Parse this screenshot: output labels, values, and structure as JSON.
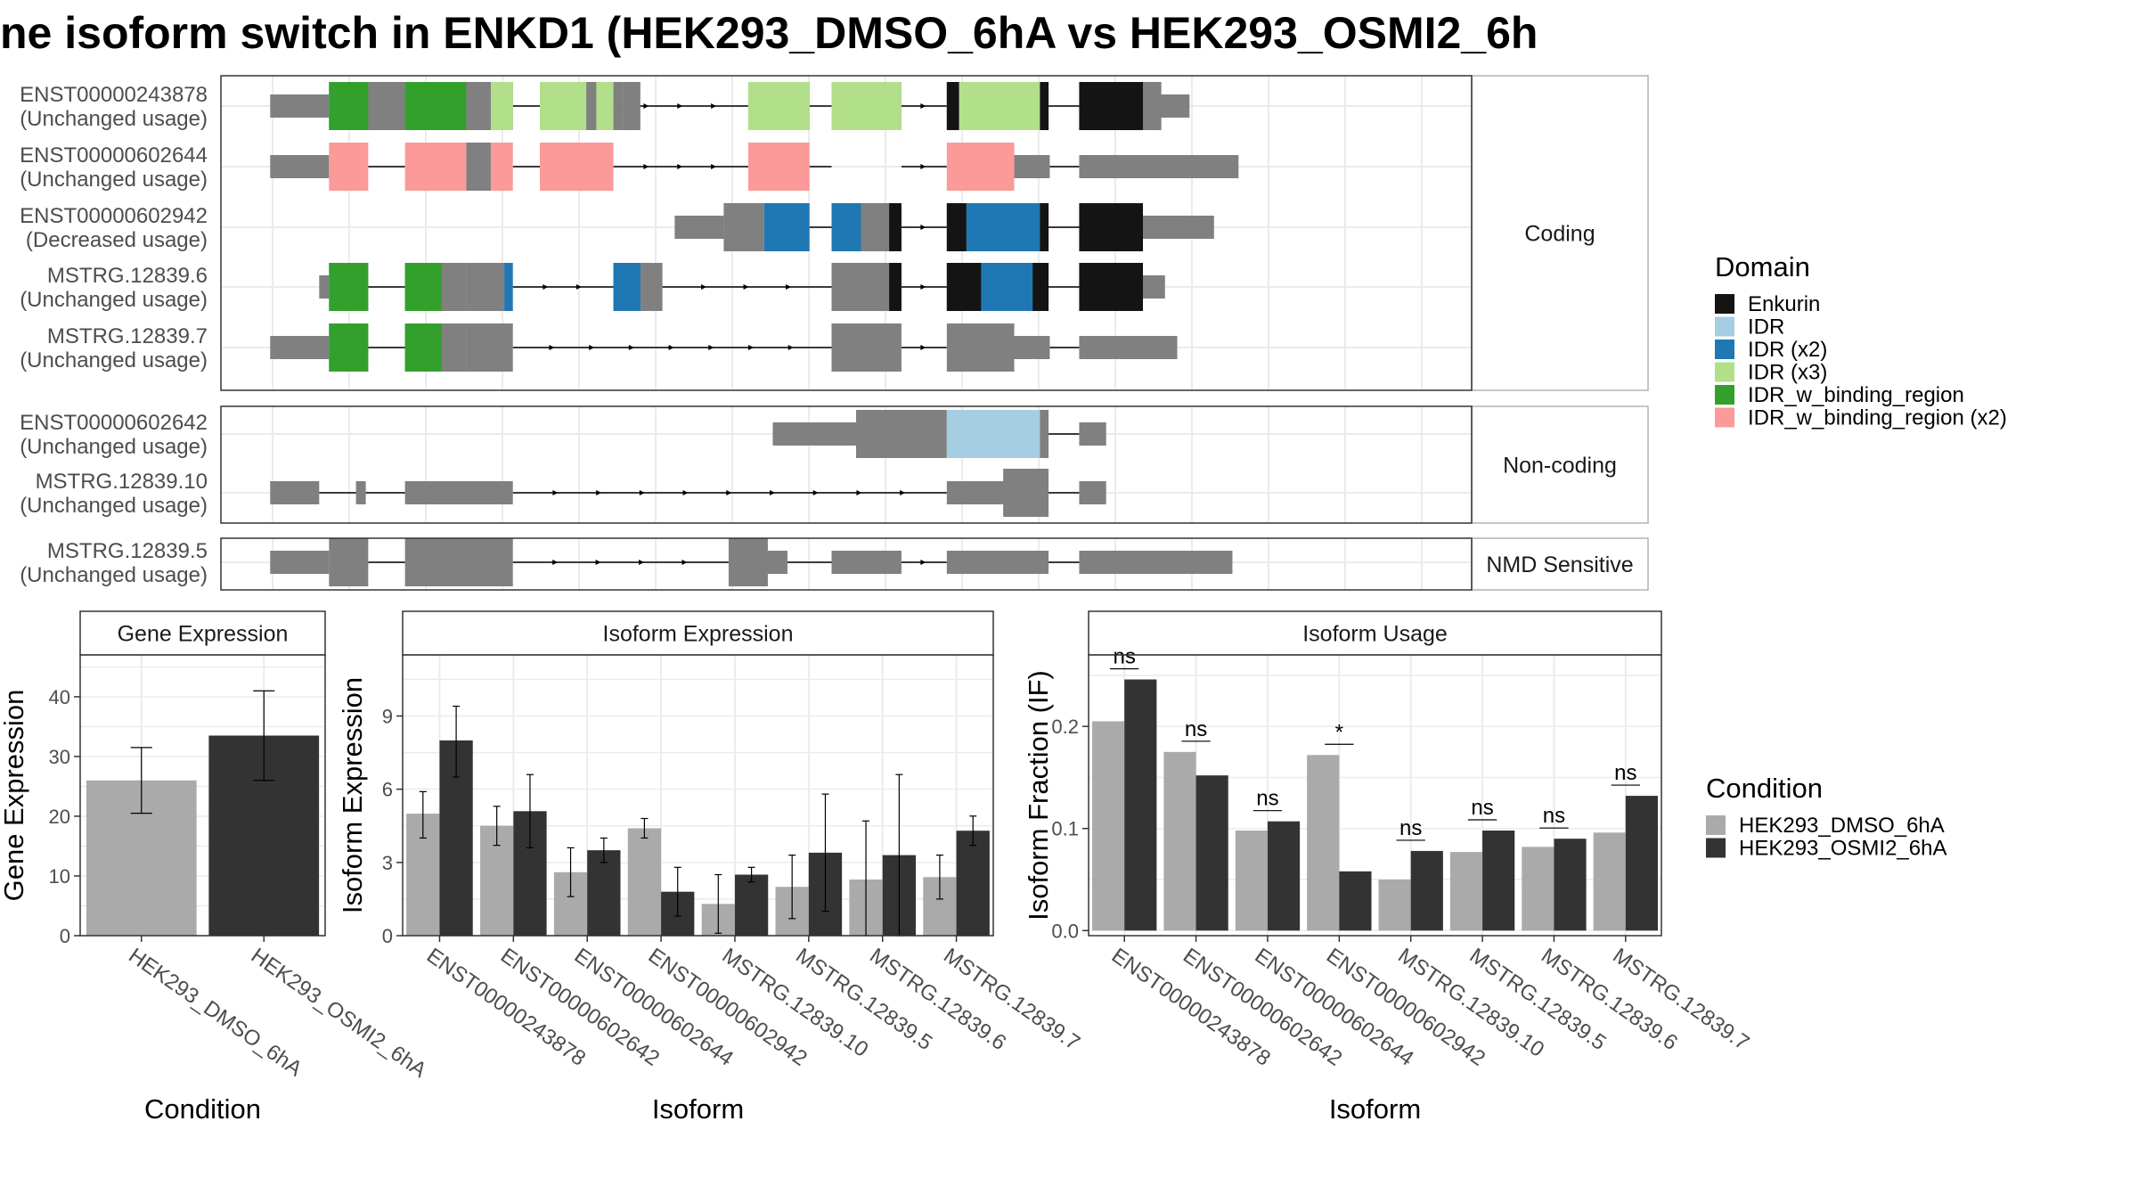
{
  "title": "ne isoform switch in ENKD1 (HEK293_DMSO_6hA vs HEK293_OSMI2_6h",
  "colors": {
    "intron": "#000000",
    "neutral_exon": "#808080",
    "Enkurin": "#141414",
    "IDR": "#a6cee3",
    "IDR (x2)": "#1f78b4",
    "IDR (x3)": "#b2df8a",
    "IDR_w_binding_region": "#33a02c",
    "IDR_w_binding_region (x2)": "#fb9a99",
    "cond1": "#aaaaaa",
    "cond2": "#333333"
  },
  "structure": {
    "x_range": [
      0,
      1000
    ],
    "sections": [
      {
        "label": "Coding",
        "isoforms": [
          {
            "id": "ENST00000243878",
            "usage": "(Unchanged usage)",
            "utr": [
              [
                30,
                78
              ],
              [
                600,
                620
              ],
              [
                700,
                780
              ]
            ],
            "cds": [
              [
                78,
                140
              ],
              [
                140,
                190
              ],
              [
                190,
                210
              ],
              [
                210,
                228
              ],
              [
                250,
                310
              ],
              [
                310,
                318
              ],
              [
                318,
                332
              ],
              [
                420,
                470
              ],
              [
                488,
                545
              ],
              [
                582,
                590
              ],
              [
                590,
                658
              ],
              [
                658,
                665
              ],
              [
                690,
                742
              ],
              [
                742,
                757
              ]
            ],
            "domains": [
              [
                78,
                110,
                "IDR_w_binding_region"
              ],
              [
                140,
                190,
                "IDR_w_binding_region"
              ],
              [
                190,
                210,
                "neutral_exon"
              ],
              [
                210,
                228,
                "IDR (x3)"
              ],
              [
                250,
                288,
                "IDR (x3)"
              ],
              [
                288,
                296,
                "neutral_exon"
              ],
              [
                296,
                310,
                "IDR (x3)"
              ],
              [
                420,
                470,
                "IDR (x3)"
              ],
              [
                488,
                545,
                "IDR (x3)"
              ],
              [
                582,
                592,
                "Enkurin"
              ],
              [
                592,
                658,
                "IDR (x3)"
              ],
              [
                658,
                665,
                "Enkurin"
              ],
              [
                690,
                742,
                "Enkurin"
              ]
            ],
            "introns": [
              [
                110,
                140
              ],
              [
                228,
                250
              ],
              [
                310,
                420
              ],
              [
                470,
                488
              ],
              [
                545,
                582
              ],
              [
                665,
                690
              ]
            ]
          },
          {
            "id": "ENST00000602644",
            "usage": "(Unchanged usage)",
            "utr": [
              [
                30,
                78
              ],
              [
                637,
                666
              ],
              [
                690,
                820
              ]
            ],
            "cds": [],
            "domains": [
              [
                78,
                110,
                "IDR_w_binding_region (x2)"
              ],
              [
                140,
                190,
                "IDR_w_binding_region (x2)"
              ],
              [
                190,
                210,
                "neutral_exon"
              ],
              [
                210,
                228,
                "IDR_w_binding_region (x2)"
              ],
              [
                250,
                310,
                "IDR_w_binding_region (x2)"
              ],
              [
                420,
                470,
                "IDR_w_binding_region (x2)"
              ],
              [
                582,
                637,
                "IDR_w_binding_region (x2)"
              ]
            ],
            "introns": [
              [
                110,
                140
              ],
              [
                228,
                250
              ],
              [
                310,
                420
              ],
              [
                470,
                488
              ],
              [
                545,
                582
              ],
              [
                666,
                690
              ]
            ]
          },
          {
            "id": "ENST00000602942",
            "usage": "(Decreased usage)",
            "utr": [
              [
                360,
                400
              ],
              [
                742,
                800
              ]
            ],
            "cds": [
              [
                400,
                433
              ],
              [
                488,
                512
              ],
              [
                512,
                545
              ],
              [
                582,
                665
              ],
              [
                690,
                742
              ]
            ],
            "domains": [
              [
                433,
                470,
                "IDR (x2)"
              ],
              [
                488,
                512,
                "IDR (x2)"
              ],
              [
                535,
                545,
                "Enkurin"
              ],
              [
                582,
                598,
                "Enkurin"
              ],
              [
                598,
                658,
                "IDR (x2)"
              ],
              [
                658,
                665,
                "Enkurin"
              ],
              [
                690,
                742,
                "Enkurin"
              ]
            ],
            "introns": [
              [
                470,
                488
              ],
              [
                545,
                582
              ],
              [
                665,
                690
              ]
            ]
          },
          {
            "id": "MSTRG.12839.6",
            "usage": "(Unchanged usage)",
            "utr": [
              [
                70,
                78
              ],
              [
                742,
                760
              ]
            ],
            "cds": [
              [
                78,
                110
              ],
              [
                140,
                190
              ],
              [
                190,
                221
              ],
              [
                310,
                350
              ],
              [
                488,
                545
              ],
              [
                582,
                665
              ],
              [
                690,
                742
              ]
            ],
            "domains": [
              [
                78,
                110,
                "IDR_w_binding_region"
              ],
              [
                140,
                170,
                "IDR_w_binding_region"
              ],
              [
                221,
                228,
                "IDR (x2)"
              ],
              [
                310,
                332,
                "IDR (x2)"
              ],
              [
                535,
                545,
                "Enkurin"
              ],
              [
                582,
                610,
                "Enkurin"
              ],
              [
                610,
                652,
                "IDR (x2)"
              ],
              [
                652,
                665,
                "Enkurin"
              ],
              [
                690,
                742,
                "Enkurin"
              ]
            ],
            "introns": [
              [
                110,
                140
              ],
              [
                228,
                310
              ],
              [
                350,
                488
              ],
              [
                545,
                582
              ],
              [
                665,
                690
              ]
            ]
          },
          {
            "id": "MSTRG.12839.7",
            "usage": "(Unchanged usage)",
            "utr": [
              [
                30,
                78
              ],
              [
                637,
                666
              ],
              [
                690,
                770
              ]
            ],
            "cds": [
              [
                78,
                110
              ],
              [
                140,
                190
              ],
              [
                190,
                228
              ],
              [
                488,
                545
              ],
              [
                582,
                637
              ]
            ],
            "domains": [
              [
                78,
                110,
                "IDR_w_binding_region"
              ],
              [
                140,
                170,
                "IDR_w_binding_region"
              ]
            ],
            "introns": [
              [
                110,
                140
              ],
              [
                228,
                488
              ],
              [
                545,
                582
              ],
              [
                666,
                690
              ]
            ]
          }
        ]
      },
      {
        "label": "Non-coding",
        "isoforms": [
          {
            "id": "ENST00000602642",
            "usage": "(Unchanged usage)",
            "utr": [
              [
                440,
                508
              ],
              [
                690,
                712
              ]
            ],
            "cds": [
              [
                508,
                582
              ],
              [
                582,
                658
              ],
              [
                658,
                665
              ]
            ],
            "domains": [
              [
                582,
                658,
                "IDR"
              ]
            ],
            "introns": [
              [
                665,
                690
              ]
            ]
          },
          {
            "id": "MSTRG.12839.10",
            "usage": "(Unchanged usage)",
            "utr": [
              [
                30,
                70
              ],
              [
                100,
                108
              ],
              [
                140,
                228
              ],
              [
                582,
                640
              ],
              [
                690,
                712
              ]
            ],
            "cds": [
              [
                628,
                665
              ]
            ],
            "domains": [],
            "introns": [
              [
                70,
                100
              ],
              [
                108,
                140
              ],
              [
                228,
                582
              ],
              [
                665,
                690
              ]
            ]
          }
        ]
      },
      {
        "label": "NMD Sensitive",
        "isoforms": [
          {
            "id": "MSTRG.12839.5",
            "usage": "(Unchanged usage)",
            "utr": [
              [
                30,
                78
              ],
              [
                420,
                452
              ],
              [
                488,
                545
              ],
              [
                582,
                665
              ],
              [
                690,
                815
              ]
            ],
            "cds": [
              [
                78,
                110
              ],
              [
                140,
                228
              ],
              [
                404,
                436
              ]
            ],
            "domains": [],
            "introns": [
              [
                110,
                140
              ],
              [
                228,
                404
              ],
              [
                452,
                488
              ],
              [
                545,
                582
              ],
              [
                665,
                690
              ]
            ]
          }
        ]
      }
    ]
  },
  "legend_domain": {
    "title": "Domain",
    "items": [
      "Enkurin",
      "IDR",
      "IDR (x2)",
      "IDR (x3)",
      "IDR_w_binding_region",
      "IDR_w_binding_region (x2)"
    ]
  },
  "legend_condition": {
    "title": "Condition",
    "items": [
      "HEK293_DMSO_6hA",
      "HEK293_OSMI2_6hA"
    ]
  },
  "chart_data": [
    {
      "type": "bar",
      "title": "Gene Expression",
      "xlabel": "Condition",
      "ylabel": "Gene Expression",
      "ylim": [
        0,
        47
      ],
      "yticks": [
        0,
        10,
        20,
        30,
        40
      ],
      "categories": [
        "HEK293_DMSO_6hA",
        "HEK293_OSMI2_6hA"
      ],
      "values": [
        26,
        33.5
      ],
      "error": [
        [
          20.5,
          31.5
        ],
        [
          26,
          41
        ]
      ]
    },
    {
      "type": "bar",
      "title": "Isoform Expression",
      "xlabel": "Isoform",
      "ylabel": "Isoform Expression",
      "ylim": [
        0,
        11.5
      ],
      "yticks": [
        0,
        3,
        6,
        9
      ],
      "categories": [
        "ENST00000243878",
        "ENST00000602642",
        "ENST00000602644",
        "ENST00000602942",
        "MSTRG.12839.10",
        "MSTRG.12839.5",
        "MSTRG.12839.6",
        "MSTRG.12839.7"
      ],
      "series": [
        {
          "name": "HEK293_DMSO_6hA",
          "values": [
            5.0,
            4.5,
            2.6,
            4.4,
            1.3,
            2.0,
            2.3,
            2.4
          ],
          "error": [
            [
              4.0,
              5.9
            ],
            [
              3.7,
              5.3
            ],
            [
              1.6,
              3.6
            ],
            [
              4.0,
              4.8
            ],
            [
              0.1,
              2.5
            ],
            [
              0.7,
              3.3
            ],
            [
              0.0,
              4.7
            ],
            [
              1.5,
              3.3
            ]
          ]
        },
        {
          "name": "HEK293_OSMI2_6hA",
          "values": [
            8.0,
            5.1,
            3.5,
            1.8,
            2.5,
            3.4,
            3.3,
            4.3
          ],
          "error": [
            [
              6.5,
              9.4
            ],
            [
              3.6,
              6.6
            ],
            [
              3.0,
              4.0
            ],
            [
              0.8,
              2.8
            ],
            [
              2.2,
              2.8
            ],
            [
              1.0,
              5.8
            ],
            [
              0.0,
              6.6
            ],
            [
              3.7,
              4.9
            ]
          ]
        }
      ]
    },
    {
      "type": "bar",
      "title": "Isoform Usage",
      "xlabel": "Isoform",
      "ylabel": "Isoform Fraction (IF)",
      "ylim": [
        -0.005,
        0.27
      ],
      "yticks": [
        0.0,
        0.1,
        0.2
      ],
      "ytick_labels": [
        "0.0",
        "0.1",
        "0.2"
      ],
      "categories": [
        "ENST00000243878",
        "ENST00000602642",
        "ENST00000602644",
        "ENST00000602942",
        "MSTRG.12839.10",
        "MSTRG.12839.5",
        "MSTRG.12839.6",
        "MSTRG.12839.7"
      ],
      "series": [
        {
          "name": "HEK293_DMSO_6hA",
          "values": [
            0.205,
            0.175,
            0.098,
            0.172,
            0.05,
            0.077,
            0.082,
            0.096
          ]
        },
        {
          "name": "HEK293_OSMI2_6hA",
          "values": [
            0.246,
            0.152,
            0.107,
            0.058,
            0.078,
            0.098,
            0.09,
            0.132
          ]
        }
      ],
      "significance": [
        "ns",
        "ns",
        "ns",
        "*",
        "ns",
        "ns",
        "ns",
        "ns"
      ]
    }
  ]
}
